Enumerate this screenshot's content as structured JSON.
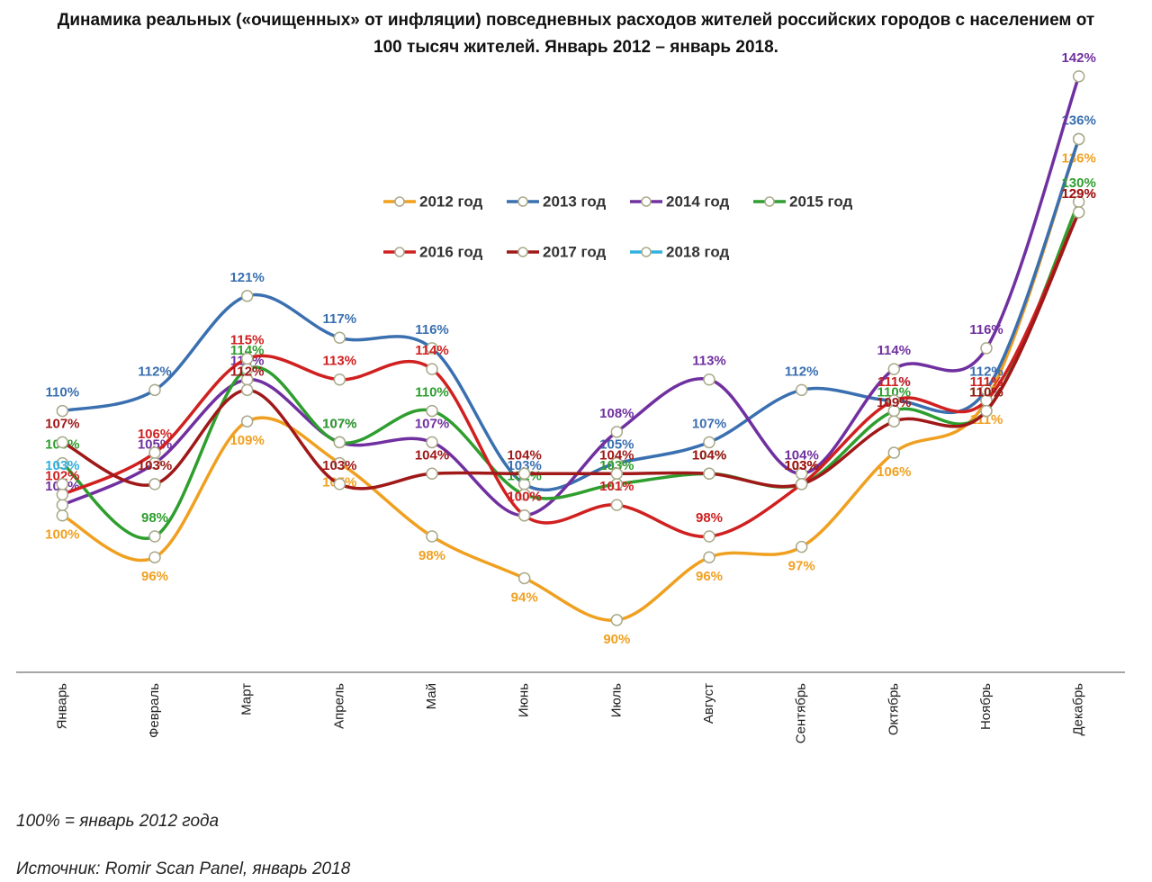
{
  "chart_data": {
    "type": "line",
    "title": "Динамика реальных («очищенных» от инфляции) повседневных расходов жителей российских городов с населением от 100 тысяч жителей. Январь 2012 – январь 2018.",
    "categories": [
      "Январь",
      "Февраль",
      "Март",
      "Апрель",
      "Май",
      "Июнь",
      "Июль",
      "Август",
      "Сентябрь",
      "Октябрь",
      "Ноябрь",
      "Декабрь"
    ],
    "ylim": [
      85,
      145
    ],
    "series": [
      {
        "name": "2012 год",
        "color": "#f0a020",
        "values": [
          100,
          96,
          109,
          105,
          98,
          94,
          90,
          96,
          97,
          106,
          111,
          136
        ],
        "value_labels": [
          "100%",
          "96%",
          "109%",
          "105%",
          "98%",
          "94%",
          "90%",
          "96%",
          "97%",
          "106%",
          "111%",
          "136%"
        ]
      },
      {
        "name": "2013 год",
        "color": "#3a6fb0",
        "values": [
          110,
          112,
          121,
          117,
          116,
          103,
          105,
          107,
          112,
          111,
          112,
          136
        ],
        "value_labels": [
          "110%",
          "112%",
          "121%",
          "117%",
          "116%",
          "103%",
          "105%",
          "107%",
          "112%",
          "111%",
          "112%",
          "136%"
        ]
      },
      {
        "name": "2014 год",
        "color": "#7030a0",
        "values": [
          101,
          105,
          113,
          107,
          107,
          100,
          108,
          113,
          104,
          114,
          116,
          142
        ],
        "value_labels": [
          "101%",
          "105%",
          "113%",
          "107%",
          "107%",
          "100%",
          "108%",
          "113%",
          "104%",
          "114%",
          "116%",
          "142%"
        ]
      },
      {
        "name": "2015 год",
        "color": "#2e9e2e",
        "values": [
          105,
          98,
          114,
          107,
          110,
          102,
          103,
          104,
          103,
          110,
          110,
          130
        ],
        "value_labels": [
          "105%",
          "98%",
          "114%",
          "107%",
          "110%",
          "102%",
          "103%",
          "104%",
          "103%",
          "110%",
          "110%",
          "130%"
        ]
      },
      {
        "name": "2016 год",
        "color": "#d02020",
        "values": [
          102,
          106,
          115,
          113,
          114,
          100,
          101,
          98,
          103,
          111,
          111,
          129
        ],
        "value_labels": [
          "102%",
          "106%",
          "115%",
          "113%",
          "114%",
          "100%",
          "101%",
          "98%",
          "103%",
          "111%",
          "111%",
          "129%"
        ]
      },
      {
        "name": "2017 год",
        "color": "#a01818",
        "values": [
          107,
          103,
          112,
          103,
          104,
          104,
          104,
          104,
          103,
          109,
          110,
          129
        ],
        "value_labels": [
          "107%",
          "103%",
          "112%",
          "103%",
          "104%",
          "104%",
          "104%",
          "104%",
          "103%",
          "109%",
          "110%",
          "129%"
        ]
      },
      {
        "name": "2018 год",
        "color": "#30b0e0",
        "values": [
          103,
          null,
          null,
          null,
          null,
          null,
          null,
          null,
          null,
          null,
          null,
          null
        ],
        "value_labels": [
          "103%",
          null,
          null,
          null,
          null,
          null,
          null,
          null,
          null,
          null,
          null,
          null
        ]
      }
    ],
    "note": "100% = январь 2012 года",
    "source": "Источник: Romir Scan Panel, январь 2018"
  }
}
